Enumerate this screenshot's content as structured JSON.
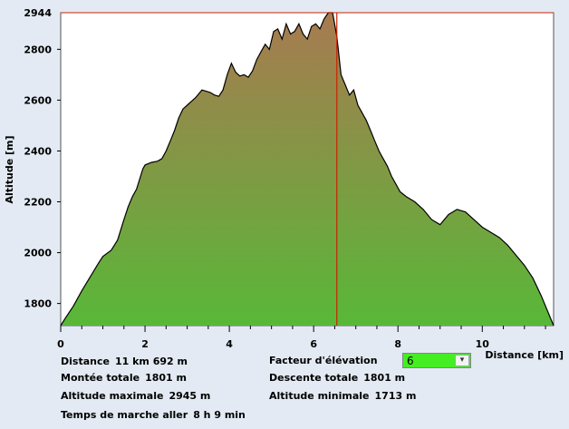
{
  "chart_data": {
    "type": "area",
    "xlabel": "Distance [km]",
    "ylabel": "Altitude [m]",
    "xlim": [
      0,
      11.692
    ],
    "ylim": [
      1713,
      2944
    ],
    "x_ticks": [
      0,
      2,
      4,
      6,
      8,
      10
    ],
    "y_ticks": [
      1800,
      2000,
      2200,
      2400,
      2600,
      2800
    ],
    "marker": {
      "label": "2944",
      "altitude": 2944,
      "distance": 6.55
    },
    "colors": {
      "fill_top": "#a87a50",
      "fill_bottom": "#58b838",
      "line": "#000000",
      "marker": "#cc2200"
    },
    "series": [
      {
        "x": [
          0,
          0.1,
          0.3,
          0.5,
          0.7,
          0.9,
          1.0,
          1.2,
          1.35,
          1.5,
          1.6,
          1.7,
          1.8,
          1.95,
          2.0,
          2.15,
          2.3,
          2.4,
          2.5,
          2.6,
          2.7,
          2.8,
          2.9,
          3.0,
          3.1,
          3.2,
          3.35,
          3.45,
          3.55,
          3.65,
          3.75,
          3.85,
          3.95,
          4.05,
          4.15,
          4.25,
          4.35,
          4.45,
          4.55,
          4.65,
          4.75,
          4.85,
          4.95,
          5.05,
          5.15,
          5.25,
          5.35,
          5.45,
          5.55,
          5.65,
          5.75,
          5.85,
          5.95,
          6.05,
          6.15,
          6.25,
          6.35,
          6.45,
          6.55,
          6.65,
          6.75,
          6.85,
          6.95,
          7.05,
          7.15,
          7.25,
          7.35,
          7.45,
          7.55,
          7.65,
          7.75,
          7.85,
          7.95,
          8.05,
          8.2,
          8.4,
          8.6,
          8.8,
          9.0,
          9.2,
          9.4,
          9.6,
          9.8,
          10.0,
          10.2,
          10.4,
          10.6,
          10.8,
          11.0,
          11.2,
          11.4,
          11.692
        ],
        "y": [
          1713,
          1740,
          1790,
          1850,
          1905,
          1960,
          1985,
          2010,
          2050,
          2130,
          2180,
          2220,
          2250,
          2330,
          2345,
          2355,
          2360,
          2370,
          2400,
          2440,
          2480,
          2530,
          2565,
          2580,
          2595,
          2610,
          2640,
          2635,
          2630,
          2620,
          2615,
          2640,
          2700,
          2745,
          2710,
          2695,
          2700,
          2690,
          2715,
          2760,
          2790,
          2820,
          2800,
          2870,
          2880,
          2840,
          2900,
          2860,
          2870,
          2900,
          2860,
          2840,
          2890,
          2900,
          2880,
          2920,
          2944,
          2944,
          2850,
          2700,
          2660,
          2620,
          2640,
          2580,
          2550,
          2520,
          2480,
          2440,
          2400,
          2370,
          2340,
          2300,
          2270,
          2240,
          2220,
          2200,
          2170,
          2130,
          2110,
          2150,
          2170,
          2160,
          2130,
          2100,
          2080,
          2060,
          2030,
          1990,
          1950,
          1900,
          1830,
          1713
        ]
      }
    ]
  },
  "stats": {
    "distance_label": "Distance",
    "distance_value": "11 km 692 m",
    "ascent_label": "Montée totale",
    "ascent_value": "1801 m",
    "max_alt_label": "Altitude maximale",
    "max_alt_value": "2945 m",
    "walk_time_label": "Temps de marche aller",
    "walk_time_value": "8 h 9 min",
    "elev_factor_label": "Facteur d'élévation",
    "elev_factor_value": "6",
    "descent_label": "Descente totale",
    "descent_value": "1801 m",
    "min_alt_label": "Altitude minimale",
    "min_alt_value": "1713 m"
  }
}
